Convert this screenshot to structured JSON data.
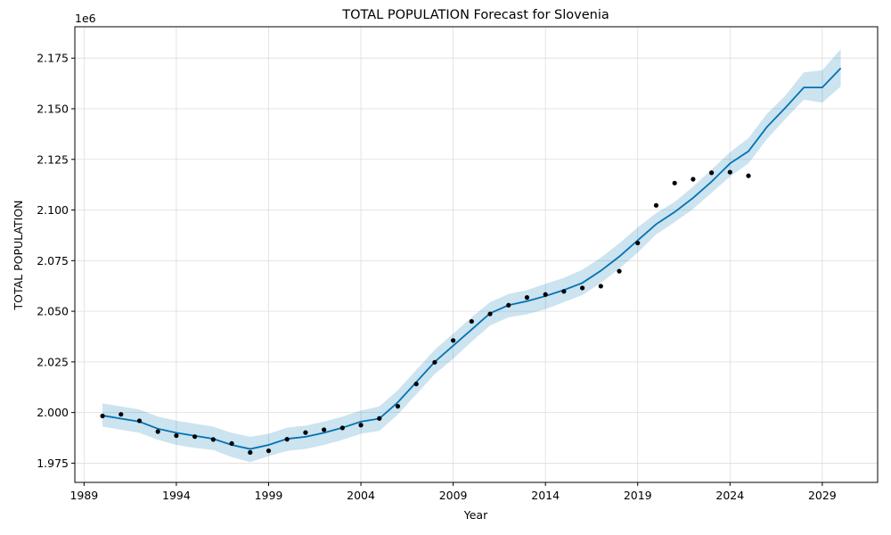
{
  "chart_data": {
    "type": "line",
    "title": "TOTAL POPULATION Forecast for Slovenia",
    "xlabel": "Year",
    "ylabel": "TOTAL POPULATION",
    "y_offset_label": "1e6",
    "y_scale": 1000000,
    "xlim": [
      1988.5,
      2032.0
    ],
    "ylim": [
      1.9655,
      2.1905
    ],
    "x_ticks": [
      1989,
      1994,
      1999,
      2004,
      2009,
      2014,
      2019,
      2024,
      2029
    ],
    "y_ticks": [
      "1.975",
      "2.000",
      "2.025",
      "2.050",
      "2.075",
      "2.100",
      "2.125",
      "2.150",
      "2.175"
    ],
    "grid": true,
    "colors": {
      "forecast": "#0072b2",
      "band": "#0072b2",
      "observed": "#000000"
    },
    "series": [
      {
        "role": "observed",
        "x": [
          1990,
          1991,
          1992,
          1993,
          1994,
          1995,
          1996,
          1997,
          1998,
          1999,
          2000,
          2001,
          2002,
          2003,
          2004,
          2005,
          2006,
          2007,
          2008,
          2009,
          2010,
          2011,
          2012,
          2013,
          2014,
          2015,
          2016,
          2017,
          2018,
          2019,
          2020,
          2021,
          2022,
          2023,
          2024,
          2025
        ],
        "y": [
          1.9983,
          1.9991,
          1.9959,
          1.9906,
          1.9886,
          1.9881,
          1.9867,
          1.9847,
          1.9803,
          1.9811,
          1.9868,
          1.9901,
          1.9915,
          1.9924,
          1.9938,
          1.9971,
          2.0031,
          2.0141,
          2.0248,
          2.0356,
          2.045,
          2.0487,
          2.053,
          2.0568,
          2.0583,
          2.0598,
          2.0615,
          2.0624,
          2.0698,
          2.0837,
          2.1023,
          2.1133,
          2.1152,
          2.1184,
          2.1187,
          2.1169
        ]
      },
      {
        "role": "forecast",
        "x": [
          1990,
          1991,
          1992,
          1993,
          1994,
          1995,
          1996,
          1997,
          1998,
          1999,
          2000,
          2001,
          2002,
          2003,
          2004,
          2005,
          2006,
          2007,
          2008,
          2009,
          2010,
          2011,
          2012,
          2013,
          2014,
          2015,
          2016,
          2017,
          2018,
          2019,
          2020,
          2021,
          2022,
          2023,
          2024,
          2025,
          2026,
          2027,
          2028,
          2029,
          2030
        ],
        "y": [
          1.9985,
          1.997,
          1.9955,
          1.992,
          1.99,
          1.9885,
          1.987,
          1.984,
          1.982,
          1.984,
          1.987,
          1.988,
          1.99,
          1.9925,
          1.9955,
          1.997,
          2.005,
          2.015,
          2.025,
          2.033,
          2.041,
          2.049,
          2.053,
          2.055,
          2.0575,
          2.0605,
          2.064,
          2.07,
          2.077,
          2.085,
          2.093,
          2.099,
          2.106,
          2.114,
          2.123,
          2.129,
          2.141,
          2.1505,
          2.1605,
          2.1605,
          2.17
        ],
        "lower": [
          1.993,
          1.9915,
          1.99,
          1.9865,
          1.984,
          1.9825,
          1.9815,
          1.978,
          1.9755,
          1.9785,
          1.981,
          1.982,
          1.984,
          1.9865,
          1.9895,
          1.991,
          1.999,
          2.009,
          2.019,
          2.0265,
          2.035,
          2.043,
          2.047,
          2.0485,
          2.051,
          2.0545,
          2.058,
          2.064,
          2.071,
          2.079,
          2.088,
          2.094,
          2.1005,
          2.1085,
          2.1165,
          2.123,
          2.135,
          2.145,
          2.1545,
          2.153,
          2.161
        ],
        "upper": [
          2.0045,
          2.003,
          2.0015,
          1.998,
          1.996,
          1.9945,
          1.993,
          1.99,
          1.988,
          1.9895,
          1.9925,
          1.9935,
          1.9955,
          1.998,
          2.001,
          2.003,
          2.011,
          2.021,
          2.031,
          2.039,
          2.047,
          2.0545,
          2.0585,
          2.0605,
          2.0635,
          2.0665,
          2.0705,
          2.0765,
          2.0835,
          2.0915,
          2.0985,
          2.104,
          2.1115,
          2.12,
          2.1285,
          2.1355,
          2.1475,
          2.1565,
          2.168,
          2.169,
          2.1795
        ]
      }
    ]
  }
}
